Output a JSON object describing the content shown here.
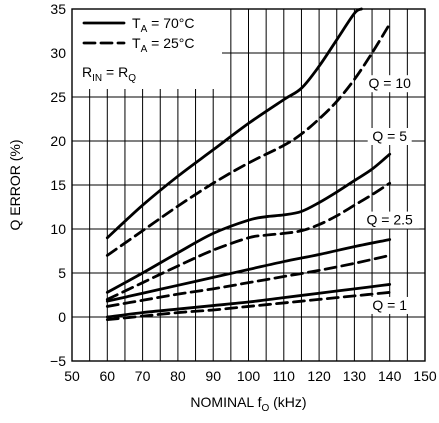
{
  "chart_data": {
    "type": "line",
    "xlabel": "NOMINAL fO (kHz)",
    "xlabel_main": "NOMINAL f",
    "xlabel_sub": "O",
    "xlabel_unit": " (kHz)",
    "ylabel": "Q ERROR (%)",
    "xlim": [
      50,
      150
    ],
    "ylim": [
      -5,
      35
    ],
    "x_ticks": [
      50,
      60,
      70,
      80,
      90,
      100,
      110,
      120,
      130,
      140,
      150
    ],
    "y_ticks": [
      -5,
      0,
      5,
      10,
      15,
      20,
      25,
      30,
      35
    ],
    "grid": true,
    "minor_grid_step_x": 5,
    "legend": {
      "placement": "top-left",
      "entries": [
        {
          "style": "solid",
          "label_main": "T",
          "label_sub": "A",
          "label_rest": " = 70°C"
        },
        {
          "style": "dashed",
          "label_main": "T",
          "label_sub": "A",
          "label_rest": " = 25°C"
        }
      ],
      "note_main": "R",
      "note_sub1": "IN",
      "note_mid": " = R",
      "note_sub2": "Q"
    },
    "annotations": [
      {
        "text": "Q = 10",
        "x": 140,
        "y": 26
      },
      {
        "text": "Q = 5",
        "x": 140,
        "y": 20
      },
      {
        "text": "Q = 2.5",
        "x": 140,
        "y": 10.5
      },
      {
        "text": "Q = 1",
        "x": 140,
        "y": 0.8
      }
    ],
    "series": [
      {
        "q": "10",
        "style": "solid",
        "x": [
          60,
          70,
          80,
          90,
          100,
          110,
          115,
          120,
          125,
          130,
          132
        ],
        "y": [
          9,
          12.7,
          16,
          19,
          22,
          24.7,
          26,
          28.5,
          31.5,
          34.5,
          35
        ]
      },
      {
        "q": "10",
        "style": "dashed",
        "x": [
          60,
          70,
          80,
          90,
          100,
          110,
          115,
          120,
          125,
          130,
          135,
          140
        ],
        "y": [
          7,
          9.8,
          12.6,
          15.2,
          17.5,
          19.5,
          20.8,
          22.5,
          24.5,
          27,
          30,
          33.3
        ]
      },
      {
        "q": "5",
        "style": "solid",
        "x": [
          60,
          70,
          80,
          90,
          100,
          105,
          110,
          115,
          120,
          125,
          130,
          135,
          140
        ],
        "y": [
          2.8,
          5,
          7.3,
          9.5,
          11,
          11.4,
          11.6,
          12,
          13,
          14.2,
          15.5,
          16.8,
          18.5
        ]
      },
      {
        "q": "5",
        "style": "dashed",
        "x": [
          60,
          70,
          80,
          90,
          100,
          105,
          110,
          115,
          120,
          125,
          130,
          135,
          140
        ],
        "y": [
          2,
          3.9,
          5.8,
          7.6,
          9,
          9.3,
          9.5,
          9.8,
          10.5,
          11.5,
          12.7,
          13.9,
          15.2
        ]
      },
      {
        "q": "2.5",
        "style": "solid",
        "x": [
          60,
          70,
          80,
          90,
          100,
          110,
          120,
          130,
          140
        ],
        "y": [
          1.8,
          2.7,
          3.6,
          4.5,
          5.4,
          6.3,
          7.1,
          8,
          8.8
        ]
      },
      {
        "q": "2.5",
        "style": "dashed",
        "x": [
          60,
          70,
          80,
          90,
          100,
          110,
          120,
          130,
          140
        ],
        "y": [
          1.2,
          1.9,
          2.6,
          3.2,
          3.9,
          4.6,
          5.3,
          6.1,
          7
        ]
      },
      {
        "q": "1",
        "style": "solid",
        "x": [
          60,
          70,
          80,
          90,
          100,
          110,
          120,
          130,
          140
        ],
        "y": [
          0,
          0.5,
          0.9,
          1.3,
          1.7,
          2.2,
          2.7,
          3.2,
          3.7
        ]
      },
      {
        "q": "1",
        "style": "dashed",
        "x": [
          60,
          70,
          80,
          90,
          100,
          110,
          120,
          130,
          140
        ],
        "y": [
          -0.3,
          0.1,
          0.5,
          0.8,
          1.2,
          1.6,
          2,
          2.4,
          2.8
        ]
      }
    ]
  }
}
